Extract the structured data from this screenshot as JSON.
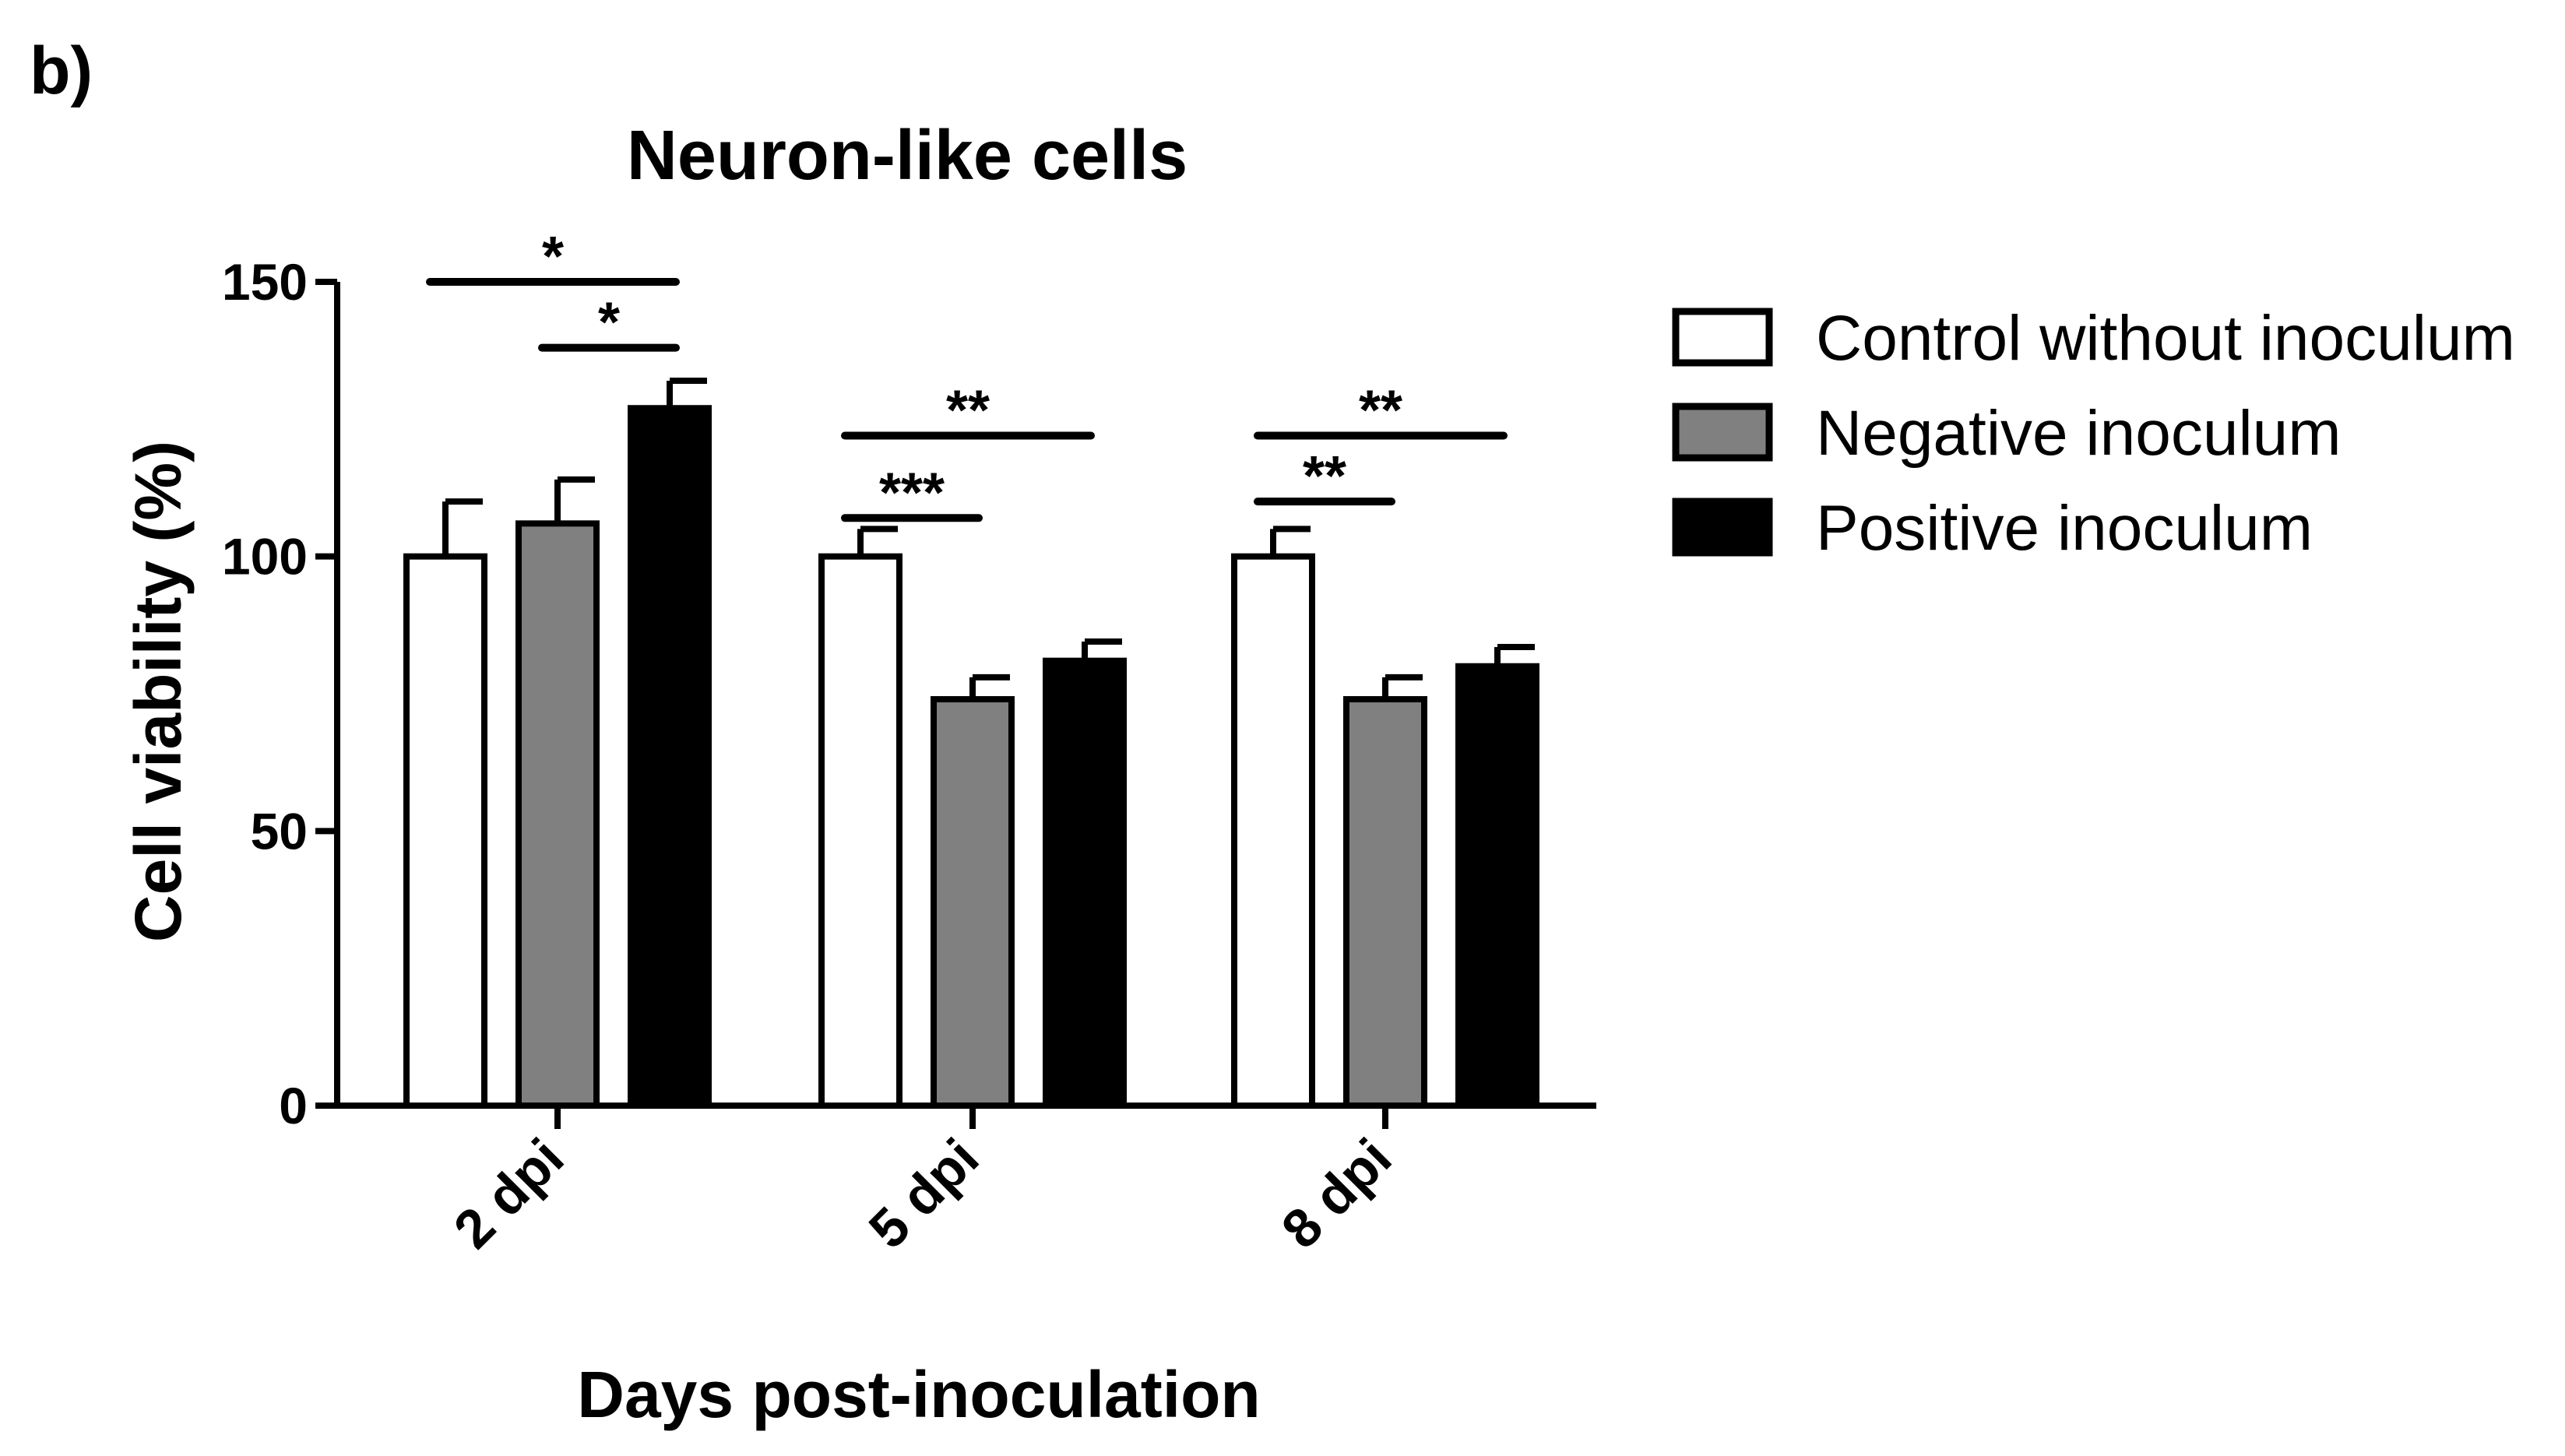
{
  "panel_label": "b)",
  "chart_data": {
    "type": "bar",
    "title": "Neuron-like cells",
    "xlabel": "Days post-inoculation",
    "ylabel": "Cell viability (%)",
    "ylim": [
      0,
      150
    ],
    "yticks": [
      "0",
      "50",
      "100",
      "150"
    ],
    "categories": [
      "2 dpi",
      "5 dpi",
      "8 dpi"
    ],
    "legend_position": "right",
    "series": [
      {
        "name": "Control without inoculum",
        "color": "#ffffff",
        "values": [
          100,
          100,
          100
        ],
        "errors": [
          10,
          5,
          5
        ]
      },
      {
        "name": "Negative inoculum",
        "color": "#808080",
        "values": [
          106,
          74,
          74
        ],
        "errors": [
          8,
          4,
          4
        ]
      },
      {
        "name": "Positive inoculum",
        "color": "#000000",
        "values": [
          127,
          81,
          80
        ],
        "errors": [
          5,
          3.5,
          3.5
        ]
      }
    ],
    "significance": [
      {
        "group": 0,
        "from": 0,
        "to": 2,
        "label": "*",
        "y": 150
      },
      {
        "group": 0,
        "from": 1,
        "to": 2,
        "label": "*",
        "y": 138
      },
      {
        "group": 1,
        "from": 0,
        "to": 2,
        "label": "**",
        "y": 122
      },
      {
        "group": 1,
        "from": 0,
        "to": 1,
        "label": "***",
        "y": 107
      },
      {
        "group": 2,
        "from": 0,
        "to": 2,
        "label": "**",
        "y": 122
      },
      {
        "group": 2,
        "from": 0,
        "to": 1,
        "label": "**",
        "y": 110
      }
    ]
  }
}
